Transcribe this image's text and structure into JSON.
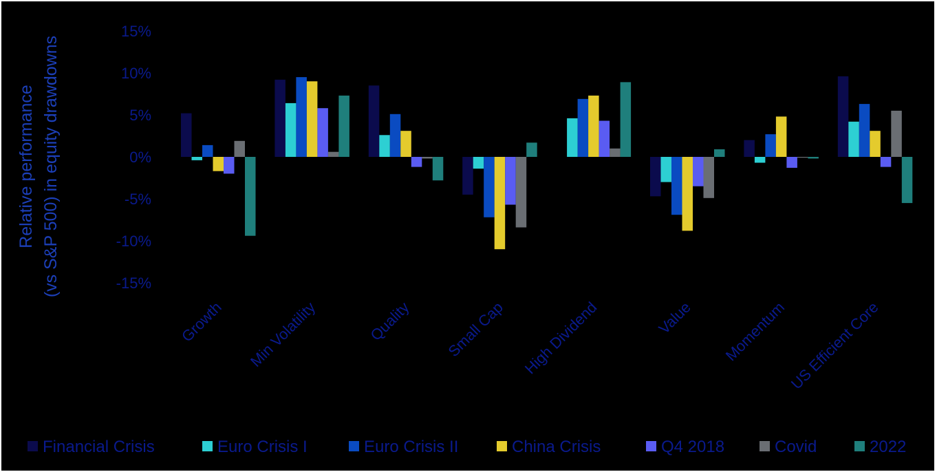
{
  "colors": {
    "background": "#000000",
    "text": "#0a1a8c",
    "ylabel": "#1c3fb8"
  },
  "chart_data": {
    "type": "bar",
    "title": "",
    "xlabel": "",
    "ylabel_lines": [
      "Relative performance",
      "(vs S&P 500) in equity drawdowns"
    ],
    "ylim": [
      -15,
      15
    ],
    "yticks": [
      15,
      10,
      5,
      0,
      -5,
      -10,
      -15
    ],
    "ytick_labels": [
      "15%",
      "10%",
      "5%",
      "0%",
      "-5%",
      "-10%",
      "-15%"
    ],
    "grid": false,
    "legend_position": "bottom",
    "categories": [
      "Growth",
      "Min Volatility",
      "Quality",
      "Small Cap",
      "High Dividend",
      "Value",
      "Momentum",
      "US Efficient Core"
    ],
    "series": [
      {
        "name": "Financial Crisis",
        "color": "#0b0b4d",
        "values": [
          5.2,
          9.2,
          8.5,
          -4.5,
          0.0,
          -4.7,
          2.0,
          9.6
        ]
      },
      {
        "name": "Euro Crisis I",
        "color": "#2dcfd3",
        "values": [
          -0.4,
          6.4,
          2.6,
          -1.4,
          4.6,
          -3.0,
          -0.7,
          4.2
        ]
      },
      {
        "name": "Euro Crisis II",
        "color": "#0a4bc1",
        "values": [
          1.4,
          9.5,
          5.1,
          -7.2,
          6.9,
          -6.9,
          2.7,
          6.3
        ]
      },
      {
        "name": "China Crisis",
        "color": "#e4cb2d",
        "values": [
          -1.7,
          9.0,
          3.1,
          -11.0,
          7.3,
          -8.8,
          4.8,
          3.1
        ]
      },
      {
        "name": "Q4 2018",
        "color": "#5a5cf2",
        "values": [
          -2.0,
          5.8,
          -1.2,
          -5.7,
          4.3,
          -3.5,
          -1.3,
          -1.2
        ]
      },
      {
        "name": "Covid",
        "color": "#6a6e73",
        "values": [
          1.9,
          0.6,
          -0.2,
          -8.4,
          1.0,
          -4.9,
          -0.1,
          5.5
        ]
      },
      {
        "name": "2022",
        "color": "#1f7f7c",
        "values": [
          -9.4,
          7.3,
          -2.8,
          1.7,
          8.9,
          0.9,
          -0.2,
          -5.5
        ]
      }
    ]
  }
}
